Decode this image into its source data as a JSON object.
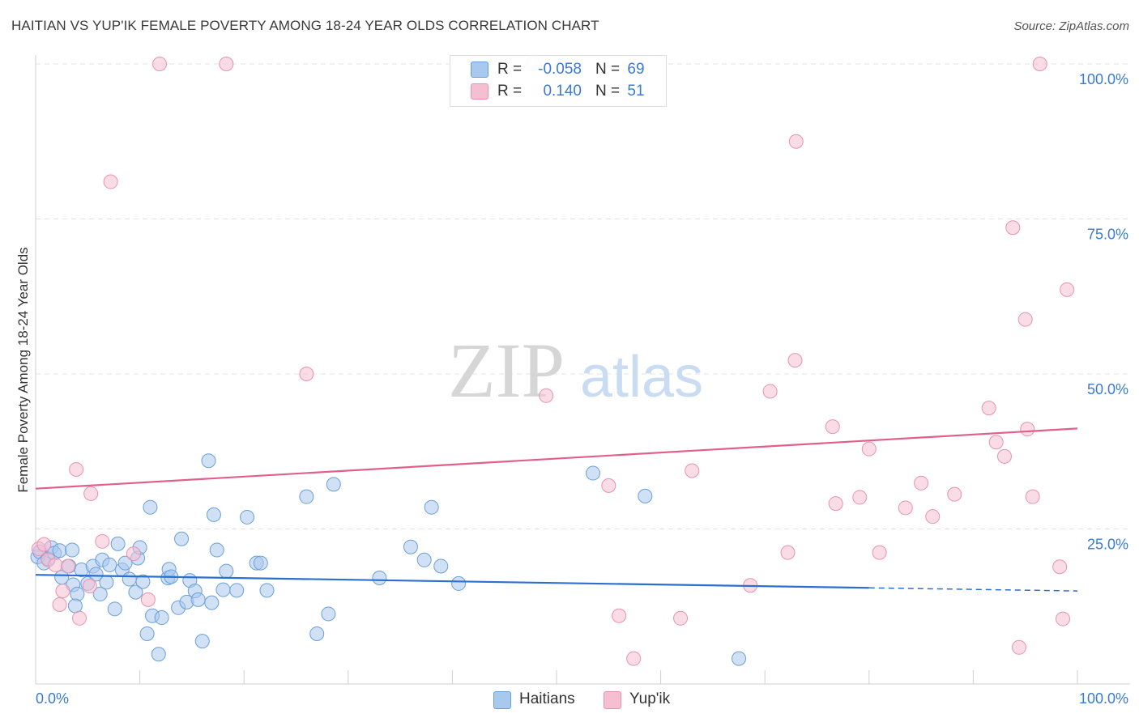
{
  "title": "HAITIAN VS YUP'IK FEMALE POVERTY AMONG 18-24 YEAR OLDS CORRELATION CHART",
  "source": "Source: ZipAtlas.com",
  "watermark": {
    "zip": "ZIP",
    "atlas": "atlas"
  },
  "colors": {
    "blue_fill": "#a9c8ee",
    "blue_stroke": "#6b9fd9",
    "blue_line": "#2b6fd1",
    "pink_fill": "#f6bfd1",
    "pink_stroke": "#e893b0",
    "pink_line": "#e0608d",
    "grid": "#e3e3e3",
    "axis_value": "#3a7bd5"
  },
  "stats": {
    "rows": [
      {
        "r_label": "R =",
        "r_value": "-0.058",
        "n_label": "N =",
        "n_value": "69",
        "color": "#a9c8ee",
        "border": "#6b9fd9"
      },
      {
        "r_label": "R =",
        "r_value": "0.140",
        "n_label": "N =",
        "n_value": "51",
        "color": "#f6bfd1",
        "border": "#e893b0"
      }
    ]
  },
  "legend": {
    "items": [
      {
        "label": "Haitians",
        "color": "#a9c8ee",
        "border": "#6b9fd9"
      },
      {
        "label": "Yup'ik",
        "color": "#f6bfd1",
        "border": "#e893b0"
      }
    ]
  },
  "chart_data": {
    "type": "scatter",
    "title": "HAITIAN VS YUP'IK FEMALE POVERTY AMONG 18-24 YEAR OLDS CORRELATION CHART",
    "xlabel": "",
    "ylabel": "Female Poverty Among 18-24 Year Olds",
    "xlim": [
      0,
      100
    ],
    "ylim": [
      0,
      100
    ],
    "x_tick_labels": [
      "0.0%",
      "100.0%"
    ],
    "y_tick_labels": [
      "25.0%",
      "50.0%",
      "75.0%",
      "100.0%"
    ],
    "y_ticks": [
      25,
      50,
      75,
      100
    ],
    "grid": true,
    "legend_position": "bottom-center",
    "series": [
      {
        "name": "Haitians",
        "color": "#a9c8ee",
        "trend": {
          "x": [
            0,
            80
          ],
          "y": [
            17.6,
            15.5
          ],
          "dashed_extension_to_x": 100,
          "dashed_end_y": 15.0
        },
        "points": [
          [
            0.2,
            20.5
          ],
          [
            0.4,
            21.3
          ],
          [
            0.8,
            19.5
          ],
          [
            1.2,
            20.2
          ],
          [
            1.5,
            22.0
          ],
          [
            1.8,
            21.1
          ],
          [
            2.3,
            21.5
          ],
          [
            2.5,
            17.2
          ],
          [
            3.2,
            19.0
          ],
          [
            3.5,
            21.6
          ],
          [
            3.6,
            16.0
          ],
          [
            4.0,
            14.5
          ],
          [
            3.8,
            12.6
          ],
          [
            4.4,
            18.4
          ],
          [
            5.0,
            16.2
          ],
          [
            5.5,
            19.0
          ],
          [
            5.8,
            17.7
          ],
          [
            6.2,
            14.5
          ],
          [
            6.4,
            20.0
          ],
          [
            6.8,
            16.4
          ],
          [
            7.1,
            19.2
          ],
          [
            7.6,
            12.1
          ],
          [
            7.9,
            22.6
          ],
          [
            8.3,
            18.4
          ],
          [
            8.6,
            19.5
          ],
          [
            9.0,
            16.9
          ],
          [
            9.6,
            14.8
          ],
          [
            9.8,
            20.3
          ],
          [
            10.0,
            22.0
          ],
          [
            10.3,
            16.5
          ],
          [
            10.7,
            8.1
          ],
          [
            11.0,
            28.5
          ],
          [
            11.2,
            11.0
          ],
          [
            11.8,
            4.8
          ],
          [
            12.1,
            10.7
          ],
          [
            12.7,
            17.1
          ],
          [
            12.8,
            18.5
          ],
          [
            13.0,
            17.3
          ],
          [
            13.7,
            12.3
          ],
          [
            14.0,
            23.4
          ],
          [
            14.5,
            13.2
          ],
          [
            14.8,
            16.7
          ],
          [
            15.3,
            15.0
          ],
          [
            15.6,
            13.6
          ],
          [
            16.0,
            6.9
          ],
          [
            16.6,
            36.0
          ],
          [
            16.9,
            13.1
          ],
          [
            17.1,
            27.3
          ],
          [
            17.4,
            21.6
          ],
          [
            18.0,
            15.2
          ],
          [
            18.3,
            18.2
          ],
          [
            19.3,
            15.1
          ],
          [
            20.3,
            26.9
          ],
          [
            21.2,
            19.5
          ],
          [
            21.6,
            19.5
          ],
          [
            22.2,
            15.1
          ],
          [
            26.0,
            30.2
          ],
          [
            27.0,
            8.1
          ],
          [
            28.1,
            11.3
          ],
          [
            28.6,
            32.2
          ],
          [
            33.0,
            17.1
          ],
          [
            36.0,
            22.1
          ],
          [
            37.3,
            20.0
          ],
          [
            38.0,
            28.5
          ],
          [
            38.9,
            19.0
          ],
          [
            40.6,
            16.2
          ],
          [
            53.5,
            34.0
          ],
          [
            58.5,
            30.3
          ],
          [
            67.5,
            4.1
          ]
        ]
      },
      {
        "name": "Yup'ik",
        "color": "#f6bfd1",
        "trend": {
          "x": [
            0,
            100
          ],
          "y": [
            31.5,
            41.2
          ]
        },
        "points": [
          [
            0.3,
            21.8
          ],
          [
            0.8,
            22.5
          ],
          [
            1.2,
            20.0
          ],
          [
            1.9,
            19.2
          ],
          [
            2.3,
            12.8
          ],
          [
            2.6,
            15.0
          ],
          [
            3.1,
            19.0
          ],
          [
            3.9,
            34.6
          ],
          [
            4.2,
            10.6
          ],
          [
            5.2,
            15.8
          ],
          [
            5.3,
            30.7
          ],
          [
            6.4,
            23.0
          ],
          [
            7.2,
            81.0
          ],
          [
            9.4,
            21.0
          ],
          [
            10.8,
            13.6
          ],
          [
            11.9,
            100.0
          ],
          [
            18.3,
            100.0
          ],
          [
            26.0,
            50.0
          ],
          [
            47.8,
            100.0
          ],
          [
            49.0,
            46.5
          ],
          [
            55.0,
            32.0
          ],
          [
            56.0,
            11.0
          ],
          [
            57.4,
            4.1
          ],
          [
            61.9,
            10.6
          ],
          [
            63.0,
            34.4
          ],
          [
            68.6,
            15.9
          ],
          [
            70.5,
            47.2
          ],
          [
            72.2,
            21.2
          ],
          [
            72.9,
            52.2
          ],
          [
            73.0,
            87.5
          ],
          [
            76.5,
            41.5
          ],
          [
            76.8,
            29.1
          ],
          [
            79.1,
            30.1
          ],
          [
            80.0,
            37.9
          ],
          [
            81.0,
            21.2
          ],
          [
            83.5,
            28.4
          ],
          [
            85.0,
            32.4
          ],
          [
            86.1,
            27.0
          ],
          [
            88.2,
            30.6
          ],
          [
            91.5,
            44.5
          ],
          [
            92.2,
            39.0
          ],
          [
            93.0,
            36.7
          ],
          [
            93.8,
            73.6
          ],
          [
            94.4,
            5.9
          ],
          [
            95.0,
            58.8
          ],
          [
            95.2,
            41.1
          ],
          [
            95.7,
            30.2
          ],
          [
            96.4,
            100.0
          ],
          [
            98.3,
            18.9
          ],
          [
            98.6,
            10.5
          ],
          [
            99.0,
            63.6
          ]
        ]
      }
    ]
  }
}
